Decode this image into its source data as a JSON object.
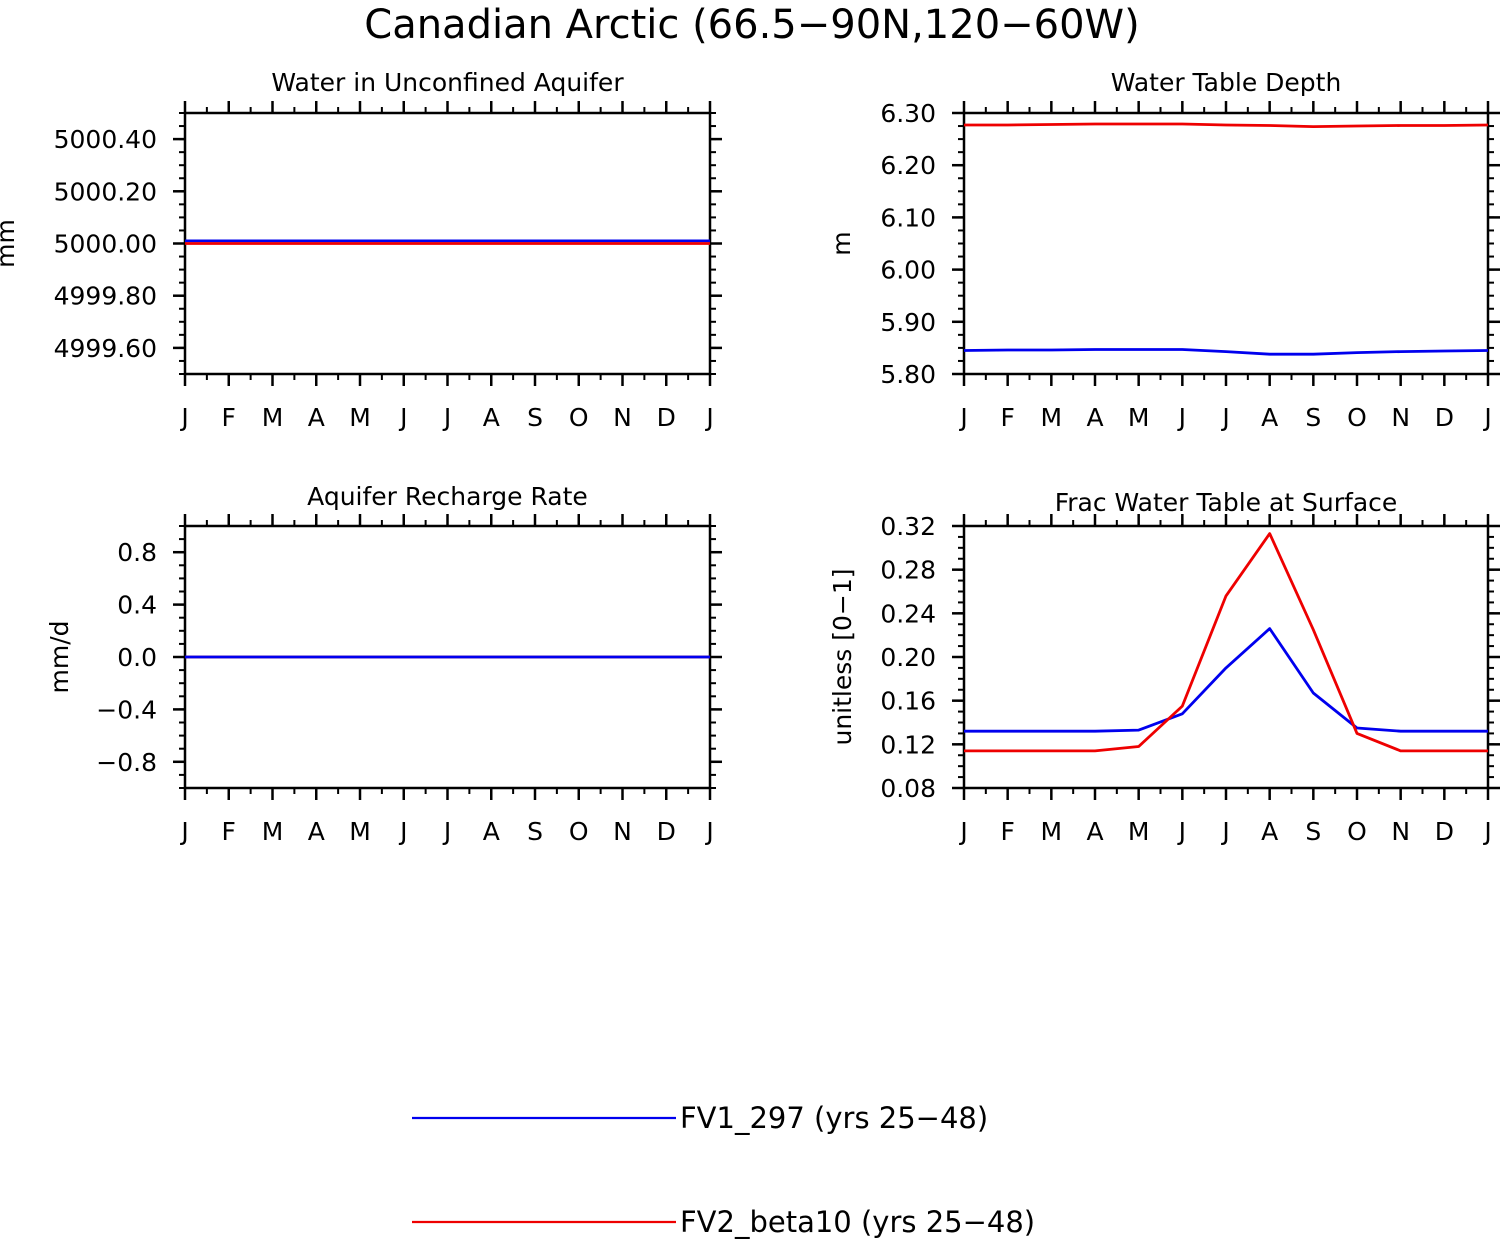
{
  "title": "Canadian Arctic (66.5−90N,120−60W)",
  "colors": {
    "FV1_297": "#0000ee",
    "FV2_beta10": "#ee0000",
    "axis": "#000000"
  },
  "legend": [
    {
      "label": "FV1_297 (yrs 25−48)",
      "color": "#0000ee"
    },
    {
      "label": "FV2_beta10 (yrs 25−48)",
      "color": "#ee0000"
    }
  ],
  "chart_data": [
    {
      "type": "line",
      "title": "Water in Unconfined Aquifer",
      "ylabel": "mm",
      "xlabel": "",
      "categories": [
        "J",
        "F",
        "M",
        "A",
        "M",
        "J",
        "J",
        "A",
        "S",
        "O",
        "N",
        "D",
        "J"
      ],
      "ylim": [
        4999.5,
        5000.5
      ],
      "yticks": [
        4999.6,
        4999.8,
        5000.0,
        5000.2,
        5000.4
      ],
      "ytick_labels": [
        "4999.60",
        "4999.80",
        "5000.00",
        "5000.20",
        "5000.40"
      ],
      "series": [
        {
          "name": "FV1_297 (yrs 25−48)",
          "color": "#0000ee",
          "values": [
            5000.01,
            5000.01,
            5000.01,
            5000.01,
            5000.01,
            5000.01,
            5000.01,
            5000.01,
            5000.01,
            5000.01,
            5000.01,
            5000.01,
            5000.01
          ]
        },
        {
          "name": "FV2_beta10 (yrs 25−48)",
          "color": "#ee0000",
          "values": [
            5000.0,
            5000.0,
            5000.0,
            5000.0,
            5000.0,
            5000.0,
            5000.0,
            5000.0,
            5000.0,
            5000.0,
            5000.0,
            5000.0,
            5000.0
          ]
        }
      ]
    },
    {
      "type": "line",
      "title": "Water Table Depth",
      "ylabel": "m",
      "xlabel": "",
      "categories": [
        "J",
        "F",
        "M",
        "A",
        "M",
        "J",
        "J",
        "A",
        "S",
        "O",
        "N",
        "D",
        "J"
      ],
      "ylim": [
        5.8,
        6.3
      ],
      "yticks": [
        5.8,
        5.9,
        6.0,
        6.1,
        6.2,
        6.3
      ],
      "ytick_labels": [
        "5.80",
        "5.90",
        "6.00",
        "6.10",
        "6.20",
        "6.30"
      ],
      "series": [
        {
          "name": "FV1_297 (yrs 25−48)",
          "color": "#0000ee",
          "values": [
            5.845,
            5.846,
            5.846,
            5.847,
            5.847,
            5.847,
            5.843,
            5.838,
            5.838,
            5.841,
            5.843,
            5.844,
            5.845
          ]
        },
        {
          "name": "FV2_beta10 (yrs 25−48)",
          "color": "#ee0000",
          "values": [
            6.277,
            6.277,
            6.278,
            6.279,
            6.279,
            6.279,
            6.277,
            6.276,
            6.274,
            6.275,
            6.276,
            6.276,
            6.277
          ]
        }
      ]
    },
    {
      "type": "line",
      "title": "Aquifer Recharge Rate",
      "ylabel": "mm/d",
      "xlabel": "",
      "categories": [
        "J",
        "F",
        "M",
        "A",
        "M",
        "J",
        "J",
        "A",
        "S",
        "O",
        "N",
        "D",
        "J"
      ],
      "ylim": [
        -1.0,
        1.0
      ],
      "yticks": [
        -0.8,
        -0.4,
        0.0,
        0.4,
        0.8
      ],
      "ytick_labels": [
        "−0.8",
        "−0.4",
        "0.0",
        "0.4",
        "0.8"
      ],
      "series": [
        {
          "name": "FV2_beta10 (yrs 25−48)",
          "color": "#ee0000",
          "values": [
            0,
            0,
            0,
            0,
            0,
            0,
            0,
            0,
            0,
            0,
            0,
            0,
            0
          ]
        },
        {
          "name": "FV1_297 (yrs 25−48)",
          "color": "#0000ee",
          "values": [
            0,
            0,
            0,
            0,
            0,
            0,
            0,
            0,
            0,
            0,
            0,
            0,
            0
          ]
        }
      ]
    },
    {
      "type": "line",
      "title": "Frac Water Table at Surface",
      "ylabel": "unitless [0−1]",
      "xlabel": "",
      "categories": [
        "J",
        "F",
        "M",
        "A",
        "M",
        "J",
        "J",
        "A",
        "S",
        "O",
        "N",
        "D",
        "J"
      ],
      "ylim": [
        0.08,
        0.32
      ],
      "yticks": [
        0.08,
        0.12,
        0.16,
        0.2,
        0.24,
        0.28,
        0.32
      ],
      "ytick_labels": [
        "0.08",
        "0.12",
        "0.16",
        "0.20",
        "0.24",
        "0.28",
        "0.32"
      ],
      "series": [
        {
          "name": "FV1_297 (yrs 25−48)",
          "color": "#0000ee",
          "values": [
            0.132,
            0.132,
            0.132,
            0.132,
            0.133,
            0.148,
            0.19,
            0.226,
            0.167,
            0.135,
            0.132,
            0.132,
            0.132
          ]
        },
        {
          "name": "FV2_beta10 (yrs 25−48)",
          "color": "#ee0000",
          "values": [
            0.114,
            0.114,
            0.114,
            0.114,
            0.118,
            0.155,
            0.256,
            0.313,
            0.225,
            0.13,
            0.114,
            0.114,
            0.114
          ]
        }
      ]
    }
  ]
}
